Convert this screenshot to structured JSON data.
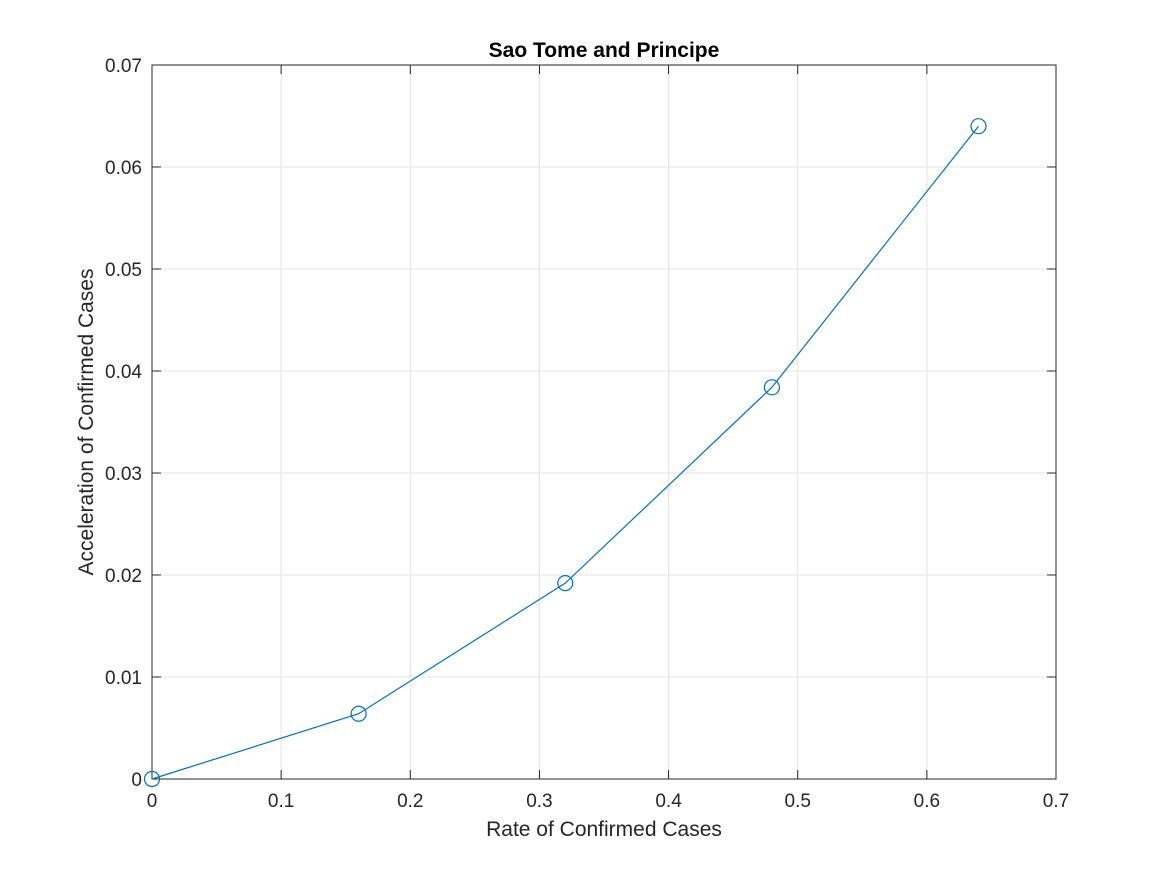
{
  "chart_data": {
    "type": "line",
    "title": "Sao Tome and Principe",
    "xlabel": "Rate of Confirmed Cases",
    "ylabel": "Acceleration of Confirmed Cases",
    "xlim": [
      0,
      0.7
    ],
    "ylim": [
      0,
      0.07
    ],
    "xticks": [
      0,
      0.1,
      0.2,
      0.3,
      0.4,
      0.5,
      0.6,
      0.7
    ],
    "yticks": [
      0,
      0.01,
      0.02,
      0.03,
      0.04,
      0.05,
      0.06,
      0.07
    ],
    "xtick_labels": [
      "0",
      "0.1",
      "0.2",
      "0.3",
      "0.4",
      "0.5",
      "0.6",
      "0.7"
    ],
    "ytick_labels": [
      "0",
      "0.01",
      "0.02",
      "0.03",
      "0.04",
      "0.05",
      "0.06",
      "0.07"
    ],
    "grid": true,
    "marker": "circle",
    "series": [
      {
        "color": "#0072BD",
        "x": [
          0,
          0.16,
          0.32,
          0.48,
          0.64
        ],
        "y": [
          0,
          0.0064,
          0.0192,
          0.0384,
          0.064
        ]
      }
    ]
  }
}
